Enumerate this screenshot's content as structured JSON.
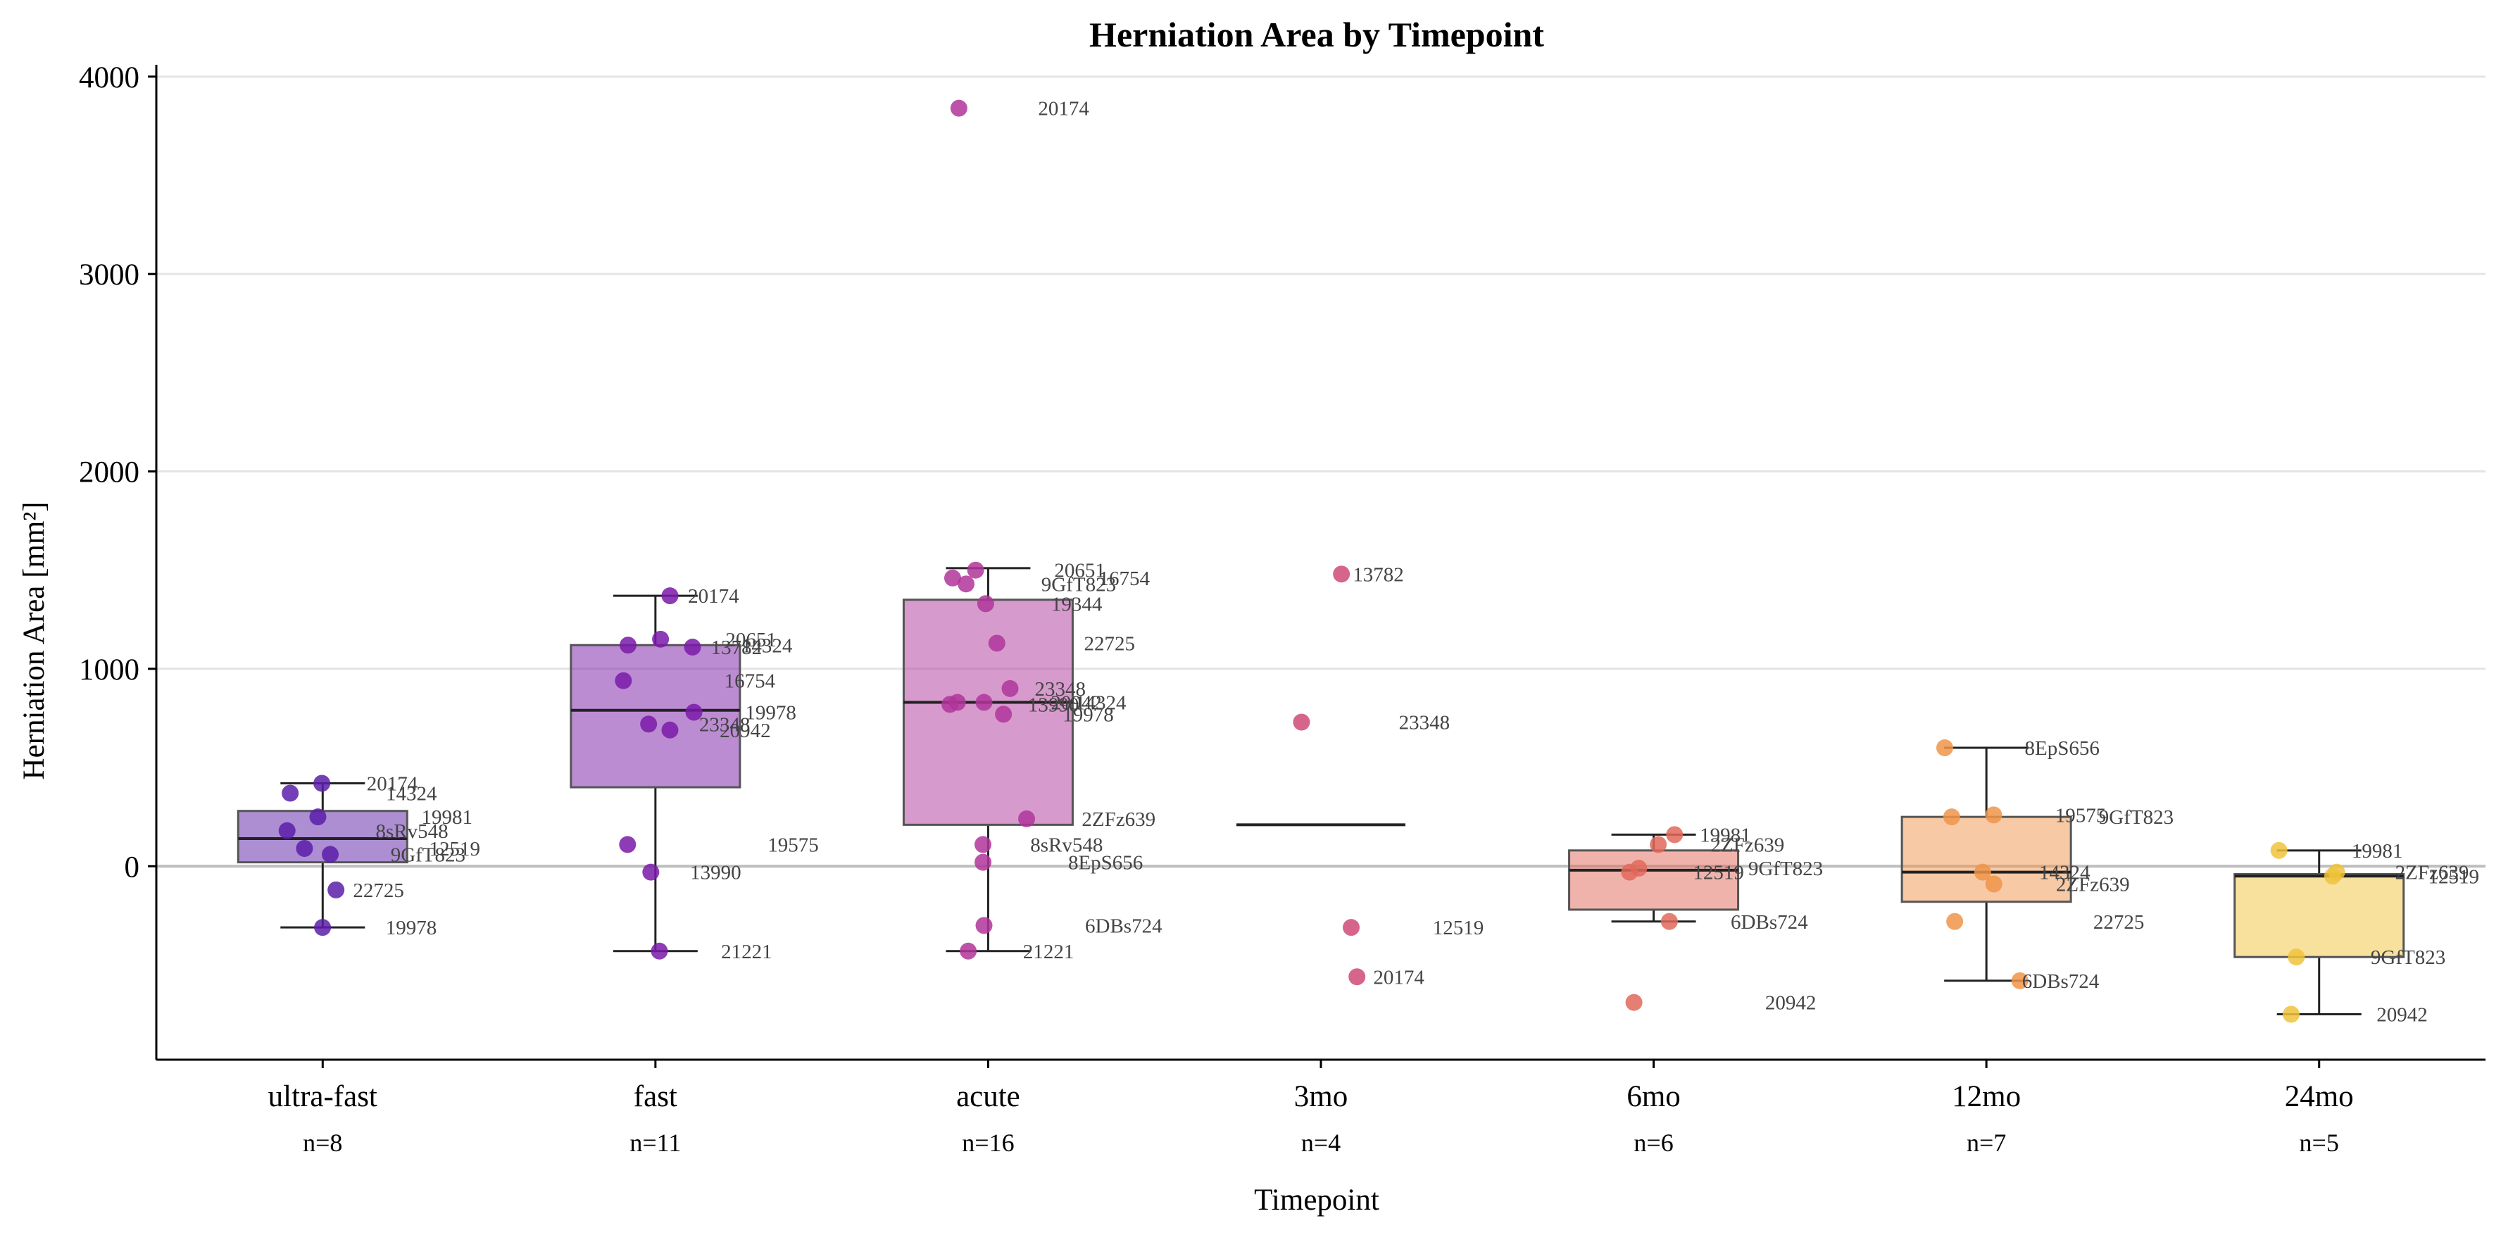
{
  "chart_data": {
    "type": "box",
    "title": "Herniation Area by Timepoint",
    "xlabel": "Timepoint",
    "ylabel": "Herniation Area [mm²]",
    "ylim": [
      -980,
      4060
    ],
    "yticks": [
      0,
      1000,
      2000,
      3000,
      4000
    ],
    "grid": "horizontal",
    "reference_line": 0,
    "groups": [
      {
        "name": "ultra-fast",
        "n_label": "n=8",
        "color": "#5b1ea8",
        "box": {
          "q1": 20,
          "median": 140,
          "q3": 280,
          "whisker_low": -310,
          "whisker_high": 420
        },
        "points": [
          {
            "label": "20174",
            "value": 420
          },
          {
            "label": "14324",
            "value": 370
          },
          {
            "label": "19981",
            "value": 250
          },
          {
            "label": "8sRv548",
            "value": 180
          },
          {
            "label": "9GfT823",
            "value": 60
          },
          {
            "label": "12519",
            "value": 90
          },
          {
            "label": "22725",
            "value": -120
          },
          {
            "label": "19978",
            "value": -310
          }
        ]
      },
      {
        "name": "fast",
        "n_label": "n=11",
        "color": "#7a1aa8",
        "box": {
          "q1": 400,
          "median": 790,
          "q3": 1120,
          "whisker_low": -430,
          "whisker_high": 1370
        },
        "points": [
          {
            "label": "20174",
            "value": 1370
          },
          {
            "label": "20651",
            "value": 1150
          },
          {
            "label": "14324",
            "value": 1120
          },
          {
            "label": "13782",
            "value": 1110
          },
          {
            "label": "16754",
            "value": 940
          },
          {
            "label": "19978",
            "value": 780
          },
          {
            "label": "23348",
            "value": 720
          },
          {
            "label": "20942",
            "value": 690
          },
          {
            "label": "19575",
            "value": 110
          },
          {
            "label": "13990",
            "value": -30
          },
          {
            "label": "21221",
            "value": -430
          }
        ]
      },
      {
        "name": "acute",
        "n_label": "n=16",
        "color": "#b0359a",
        "box": {
          "q1": 210,
          "median": 830,
          "q3": 1350,
          "whisker_low": -430,
          "whisker_high": 1510
        },
        "points": [
          {
            "label": "20174",
            "value": 3840
          },
          {
            "label": "20651",
            "value": 1500
          },
          {
            "label": "16754",
            "value": 1460
          },
          {
            "label": "9GfT823",
            "value": 1430
          },
          {
            "label": "19344",
            "value": 1330
          },
          {
            "label": "22725",
            "value": 1130
          },
          {
            "label": "23348",
            "value": 900
          },
          {
            "label": "20942",
            "value": 830
          },
          {
            "label": "14324",
            "value": 830
          },
          {
            "label": "13990",
            "value": 820
          },
          {
            "label": "19978",
            "value": 770
          },
          {
            "label": "2ZFz639",
            "value": 240
          },
          {
            "label": "8sRv548",
            "value": 110
          },
          {
            "label": "8EpS656",
            "value": 20
          },
          {
            "label": "6DBs724",
            "value": -300
          },
          {
            "label": "21221",
            "value": -430
          }
        ]
      },
      {
        "name": "3mo",
        "n_label": "n=4",
        "color": "#cf4a78",
        "box": {
          "median": 210
        },
        "points": [
          {
            "label": "13782",
            "value": 1480
          },
          {
            "label": "23348",
            "value": 730
          },
          {
            "label": "12519",
            "value": -310
          },
          {
            "label": "20174",
            "value": -560
          }
        ]
      },
      {
        "name": "6mo",
        "n_label": "n=6",
        "color": "#e0685a",
        "box": {
          "q1": -220,
          "median": -20,
          "q3": 80,
          "whisker_low": -280,
          "whisker_high": 160
        },
        "points": [
          {
            "label": "19981",
            "value": 160
          },
          {
            "label": "2ZFz639",
            "value": 110
          },
          {
            "label": "9GfT823",
            "value": -10
          },
          {
            "label": "12519",
            "value": -30
          },
          {
            "label": "6DBs724",
            "value": -280
          },
          {
            "label": "20942",
            "value": -690
          }
        ]
      },
      {
        "name": "12mo",
        "n_label": "n=7",
        "color": "#f0944a",
        "box": {
          "q1": -180,
          "median": -30,
          "q3": 250,
          "whisker_low": -580,
          "whisker_high": 600
        },
        "points": [
          {
            "label": "8EpS656",
            "value": 600
          },
          {
            "label": "19575",
            "value": 260
          },
          {
            "label": "9GfT823",
            "value": 250
          },
          {
            "label": "14324",
            "value": -30
          },
          {
            "label": "2ZFz639",
            "value": -90
          },
          {
            "label": "22725",
            "value": -280
          },
          {
            "label": "6DBs724",
            "value": -580
          }
        ]
      },
      {
        "name": "24mo",
        "n_label": "n=5",
        "color": "#f0c33c",
        "box": {
          "q1": -460,
          "median": -50,
          "q3": -40,
          "whisker_low": -750,
          "whisker_high": 80
        },
        "points": [
          {
            "label": "19981",
            "value": 80
          },
          {
            "label": "2ZFz639",
            "value": -30
          },
          {
            "label": "12519",
            "value": -50
          },
          {
            "label": "9GfT823",
            "value": -460
          },
          {
            "label": "20942",
            "value": -750
          }
        ]
      }
    ]
  }
}
